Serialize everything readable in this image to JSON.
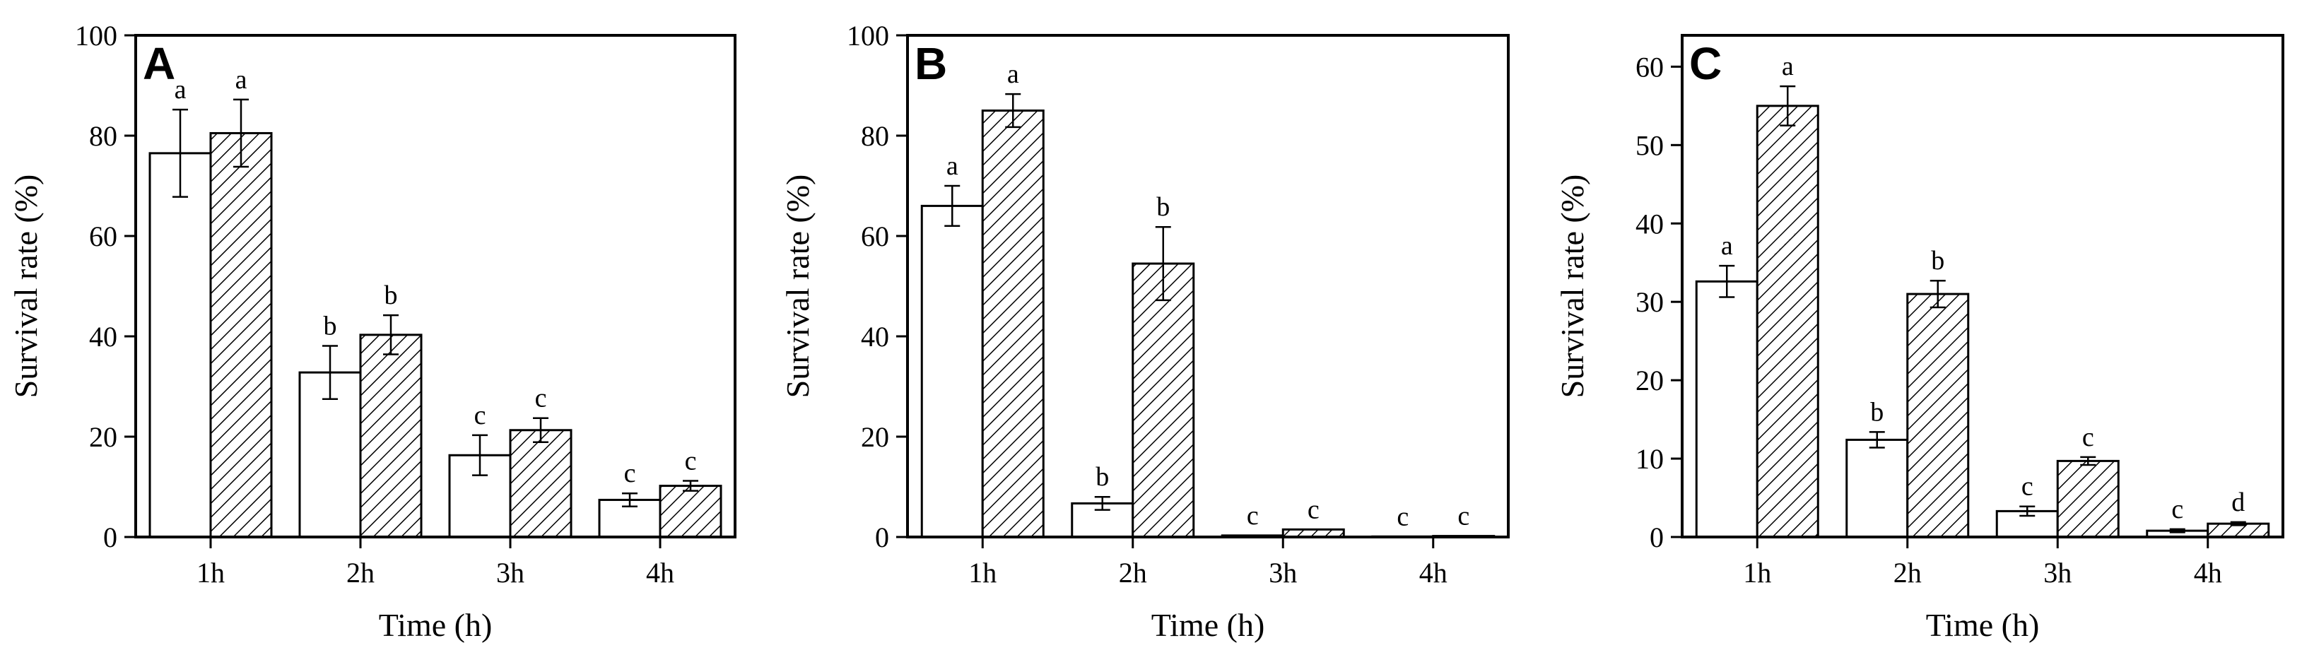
{
  "figure": {
    "background": "#ffffff",
    "line_color": "#000000"
  },
  "chart_data": [
    {
      "type": "bar",
      "panel_label": "A",
      "xlabel": "Time (h)",
      "ylabel": "Survival rate (%)",
      "ylim": [
        0,
        100
      ],
      "yticks": [
        0,
        20,
        40,
        60,
        80,
        100
      ],
      "categories": [
        "1h",
        "2h",
        "3h",
        "4h"
      ],
      "grid": false,
      "legend": "none",
      "series": [
        {
          "fill": "white",
          "values": [
            76.5,
            32.8,
            16.3,
            7.4
          ],
          "errors": [
            8.7,
            5.3,
            4.0,
            1.3
          ],
          "labels": [
            "a",
            "b",
            "c",
            "c"
          ]
        },
        {
          "fill": "hatched",
          "values": [
            80.5,
            40.3,
            21.3,
            10.2
          ],
          "errors": [
            6.7,
            3.9,
            2.4,
            1.0
          ],
          "labels": [
            "a",
            "b",
            "c",
            "c"
          ]
        }
      ]
    },
    {
      "type": "bar",
      "panel_label": "B",
      "xlabel": "Time (h)",
      "ylabel": "Survival rate (%)",
      "ylim": [
        0,
        100
      ],
      "yticks": [
        0,
        20,
        40,
        60,
        80,
        100
      ],
      "categories": [
        "1h",
        "2h",
        "3h",
        "4h"
      ],
      "grid": false,
      "legend": "none",
      "series": [
        {
          "fill": "white",
          "values": [
            66.0,
            6.7,
            0.3,
            0.1
          ],
          "errors": [
            4.0,
            1.3,
            0.0,
            0.0
          ],
          "labels": [
            "a",
            "b",
            "c",
            "c"
          ]
        },
        {
          "fill": "hatched",
          "values": [
            85.0,
            54.5,
            1.5,
            0.2
          ],
          "errors": [
            3.3,
            7.3,
            0.0,
            0.0
          ],
          "labels": [
            "a",
            "b",
            "c",
            "c"
          ]
        }
      ]
    },
    {
      "type": "bar",
      "panel_label": "C",
      "xlabel": "Time (h)",
      "ylabel": "Survival rate (%)",
      "ylim": [
        0,
        64
      ],
      "yticks": [
        0,
        10,
        20,
        30,
        40,
        50,
        60
      ],
      "categories": [
        "1h",
        "2h",
        "3h",
        "4h"
      ],
      "grid": false,
      "legend": "none",
      "series": [
        {
          "fill": "white",
          "values": [
            32.6,
            12.4,
            3.3,
            0.8
          ],
          "errors": [
            2.0,
            1.0,
            0.6,
            0.2
          ],
          "labels": [
            "a",
            "b",
            "c",
            "c"
          ]
        },
        {
          "fill": "hatched",
          "values": [
            55.0,
            31.0,
            9.7,
            1.7
          ],
          "errors": [
            2.5,
            1.7,
            0.5,
            0.2
          ],
          "labels": [
            "a",
            "b",
            "c",
            "d"
          ]
        }
      ]
    }
  ]
}
